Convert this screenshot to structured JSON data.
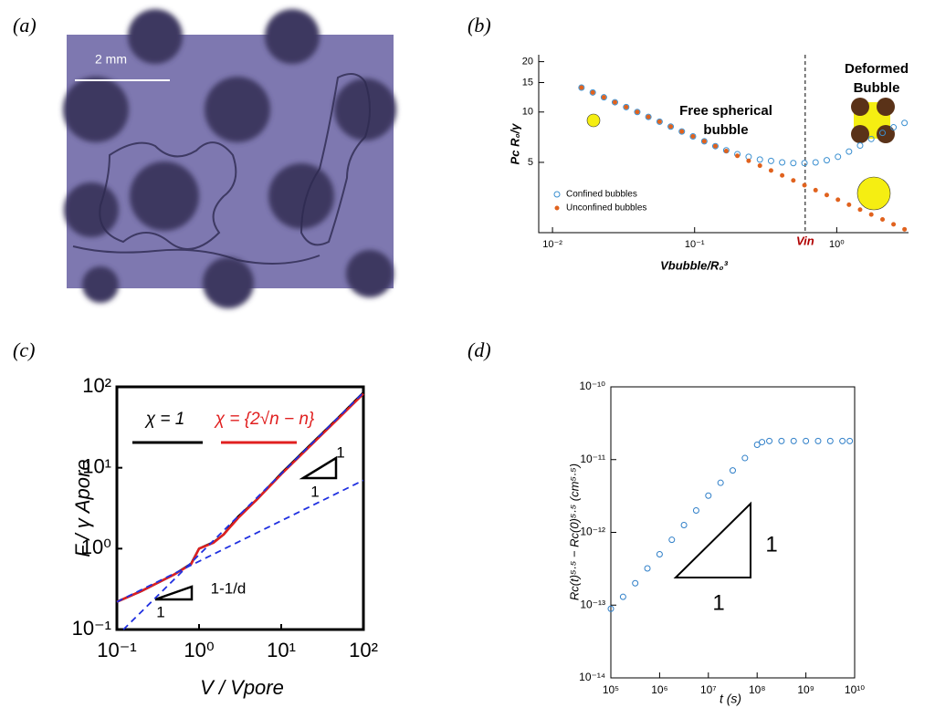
{
  "panels": [
    "(a)",
    "(b)",
    "(c)",
    "(d)"
  ],
  "image": {
    "scale_label": "2 mm"
  },
  "chart_data": [
    {
      "type": "scatter",
      "xlabel": "Vbubble/R₀³",
      "ylabel": "Pc R₀/γ",
      "xlog": true,
      "ylog": true,
      "xlim": [
        0.008,
        3.2
      ],
      "ylim": [
        1.9,
        22
      ],
      "xticks": [
        {
          "value": 0.01,
          "label": "10⁻²"
        },
        {
          "value": 0.1,
          "label": "10⁻¹"
        },
        {
          "value": 1,
          "label": "10⁰"
        }
      ],
      "yticks": [
        5,
        10,
        15,
        20
      ],
      "legend": "lower left",
      "vline": {
        "value": 0.6,
        "label": "Vin",
        "color": "#b00000"
      },
      "annotations": [
        "Free spherical",
        "bubble",
        "Deformed",
        "Bubble"
      ],
      "x": [
        0.016,
        0.0192,
        0.023,
        0.0275,
        0.033,
        0.0395,
        0.0473,
        0.0567,
        0.0679,
        0.0813,
        0.0974,
        0.117,
        0.14,
        0.167,
        0.2,
        0.24,
        0.288,
        0.345,
        0.413,
        0.495,
        0.593,
        0.71,
        0.851,
        1.02,
        1.22,
        1.46,
        1.75,
        2.1,
        2.51,
        3.0
      ],
      "series": [
        {
          "name": "Confined bubbles",
          "color": "#3a8fd0",
          "marker": "open",
          "values": [
            14,
            13.09,
            12.24,
            11.44,
            10.7,
            10.0,
            9.35,
            8.75,
            8.18,
            7.65,
            7.15,
            6.68,
            6.25,
            5.9,
            5.6,
            5.4,
            5.2,
            5.1,
            5.0,
            4.95,
            4.95,
            5.0,
            5.15,
            5.4,
            5.8,
            6.3,
            6.9,
            7.5,
            8.1,
            8.6
          ]
        },
        {
          "name": "Unconfined bubbles",
          "color": "#e0621e",
          "marker": "dot",
          "values": [
            14,
            13.09,
            12.24,
            11.44,
            10.7,
            10.0,
            9.35,
            8.75,
            8.18,
            7.65,
            7.15,
            6.68,
            6.25,
            5.85,
            5.47,
            5.11,
            4.78,
            4.47,
            4.18,
            3.9,
            3.65,
            3.41,
            3.19,
            2.99,
            2.79,
            2.61,
            2.44,
            2.28,
            2.13,
            1.99
          ]
        }
      ]
    },
    {
      "type": "line",
      "xlabel": "V / Vpore",
      "ylabel": "F / γ Apore",
      "xlog": true,
      "ylog": true,
      "xlim": [
        0.1,
        100
      ],
      "ylim": [
        0.1,
        100
      ],
      "xticks": [
        {
          "value": 0.1,
          "label": "10⁻¹"
        },
        {
          "value": 1,
          "label": "10⁰"
        },
        {
          "value": 10,
          "label": "10¹"
        },
        {
          "value": 100,
          "label": "10²"
        }
      ],
      "yticks": [
        {
          "value": 0.1,
          "label": "10⁻¹"
        },
        {
          "value": 1,
          "label": "10⁰"
        },
        {
          "value": 10,
          "label": "10¹"
        },
        {
          "value": 100,
          "label": "10²"
        }
      ],
      "legend": "upper left",
      "annotations": [
        "1",
        "1",
        "1-1/d",
        "1"
      ],
      "series": [
        {
          "name": "χ = 1",
          "color": "#000000",
          "x": [
            0.1,
            0.2,
            0.3,
            0.5,
            0.8,
            1,
            1.5,
            2,
            3,
            5,
            10,
            20,
            50,
            100
          ],
          "values": [
            0.22,
            0.3,
            0.37,
            0.48,
            0.65,
            1.0,
            1.2,
            1.5,
            2.5,
            4,
            8.5,
            17,
            42,
            85
          ]
        },
        {
          "name": "χ = {2√n − n}",
          "color": "#e02020",
          "x": [
            0.1,
            0.2,
            0.3,
            0.5,
            0.8,
            1,
            1.5,
            2,
            3,
            5,
            10,
            20,
            50,
            100
          ],
          "values": [
            0.22,
            0.3,
            0.37,
            0.48,
            0.64,
            1.0,
            1.18,
            1.5,
            2.4,
            4,
            8.3,
            16.5,
            41,
            82
          ]
        },
        {
          "color": "#2030e0",
          "dash": true,
          "x": [
            0.1,
            100
          ],
          "values": [
            0.22,
            7.0
          ]
        },
        {
          "color": "#2030e0",
          "dash": true,
          "x": [
            0.12,
            100
          ],
          "values": [
            0.1,
            85
          ]
        }
      ]
    },
    {
      "type": "scatter",
      "xlabel": "t (s)",
      "ylabel": "Rc(t)⁵·⁵ − Rc(0)⁵·⁵ (cm⁵·⁵)",
      "xlog": true,
      "ylog": true,
      "xlim": [
        100000,
        10000000000
      ],
      "ylim": [
        1e-14,
        1e-10
      ],
      "xticks": [
        {
          "value": 100000,
          "label": "10⁵"
        },
        {
          "value": 1000000,
          "label": "10⁶"
        },
        {
          "value": 10000000,
          "label": "10⁷"
        },
        {
          "value": 100000000,
          "label": "10⁸"
        },
        {
          "value": 1000000000,
          "label": "10⁹"
        },
        {
          "value": 10000000000,
          "label": "10¹⁰"
        }
      ],
      "yticks": [
        {
          "value": 1e-14,
          "label": "10⁻¹⁴"
        },
        {
          "value": 1e-13,
          "label": "10⁻¹³"
        },
        {
          "value": 1e-12,
          "label": "10⁻¹²"
        },
        {
          "value": 1e-11,
          "label": "10⁻¹¹"
        },
        {
          "value": 1e-10,
          "label": "10⁻¹⁰"
        }
      ],
      "annotations": [
        "1",
        "1"
      ],
      "x": [
        100000,
        178000,
        316000,
        562000,
        1000000,
        1780000,
        3160000,
        5620000,
        10000000,
        17800000,
        31600000,
        56200000,
        100000000,
        126000000,
        178000000,
        316000000,
        562000000,
        1000000000,
        1780000000,
        3160000000,
        5620000000,
        7940000000
      ],
      "series": [
        {
          "color": "#2f7fc8",
          "marker": "open",
          "values": [
            8.9e-14,
            1.3e-13,
            2e-13,
            3.2e-13,
            5e-13,
            7.9e-13,
            1.26e-12,
            2e-12,
            3.2e-12,
            4.8e-12,
            7.1e-12,
            1.05e-11,
            1.6e-11,
            1.74e-11,
            1.8e-11,
            1.8e-11,
            1.8e-11,
            1.8e-11,
            1.8e-11,
            1.8e-11,
            1.8e-11,
            1.8e-11
          ]
        }
      ]
    }
  ]
}
